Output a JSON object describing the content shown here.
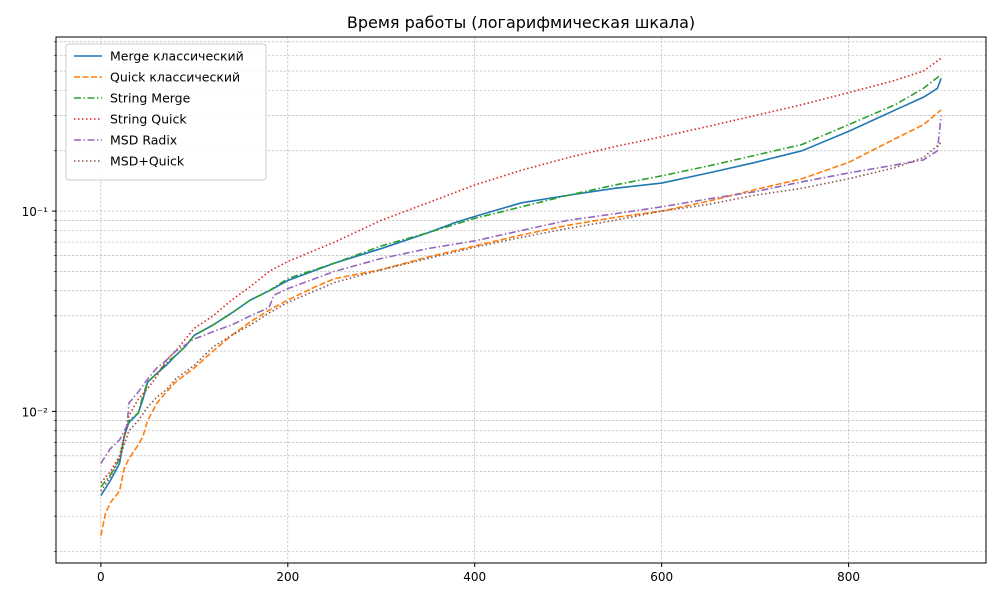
{
  "chart_data": {
    "type": "line",
    "title": "Время работы (логарифмическая шкала)",
    "xlabel": "",
    "ylabel": "",
    "xlim": [
      -48,
      947
    ],
    "ylim": [
      0.00175,
      0.74
    ],
    "yscale": "log",
    "grid": "both-major-minor-dashed",
    "legend_position": "top-left",
    "x_ticks": [
      0,
      200,
      400,
      600,
      800
    ],
    "x_tick_labels": [
      "0",
      "200",
      "400",
      "600",
      "800"
    ],
    "y_ticks": [
      0.01,
      0.1
    ],
    "y_tick_labels": [
      "10⁻²",
      "10⁻¹"
    ],
    "series": [
      {
        "name": "Merge классический",
        "color": "#1f77b4",
        "dash": "solid",
        "x": [
          0,
          10,
          20,
          25,
          30,
          40,
          45,
          50,
          60,
          70,
          80,
          90,
          100,
          120,
          140,
          160,
          180,
          200,
          250,
          300,
          350,
          380,
          400,
          450,
          500,
          550,
          600,
          650,
          700,
          750,
          800,
          850,
          880,
          895,
          899
        ],
        "y": [
          0.0038,
          0.0045,
          0.0055,
          0.0075,
          0.0088,
          0.0098,
          0.0115,
          0.014,
          0.0155,
          0.017,
          0.019,
          0.021,
          0.024,
          0.027,
          0.031,
          0.036,
          0.04,
          0.045,
          0.055,
          0.065,
          0.078,
          0.088,
          0.094,
          0.11,
          0.12,
          0.13,
          0.138,
          0.155,
          0.175,
          0.2,
          0.25,
          0.32,
          0.37,
          0.41,
          0.46
        ]
      },
      {
        "name": "Quick классический",
        "color": "#ff7f0e",
        "dash": "dashed",
        "x": [
          0,
          5,
          10,
          20,
          25,
          30,
          40,
          45,
          50,
          60,
          70,
          80,
          100,
          120,
          140,
          160,
          180,
          200,
          230,
          250,
          300,
          350,
          400,
          450,
          500,
          550,
          600,
          650,
          700,
          750,
          800,
          850,
          880,
          899
        ],
        "y": [
          0.0024,
          0.0031,
          0.0035,
          0.004,
          0.0052,
          0.0058,
          0.0068,
          0.0075,
          0.009,
          0.011,
          0.0125,
          0.014,
          0.0165,
          0.02,
          0.024,
          0.028,
          0.032,
          0.036,
          0.042,
          0.046,
          0.051,
          0.059,
          0.067,
          0.076,
          0.085,
          0.093,
          0.1,
          0.112,
          0.128,
          0.145,
          0.175,
          0.23,
          0.27,
          0.32
        ]
      },
      {
        "name": "String Merge",
        "color": "#2ca02c",
        "dash": "dashdot",
        "x": [
          0,
          10,
          20,
          25,
          30,
          40,
          45,
          50,
          60,
          70,
          80,
          90,
          100,
          120,
          140,
          160,
          180,
          200,
          250,
          300,
          350,
          400,
          450,
          500,
          550,
          600,
          650,
          700,
          750,
          800,
          850,
          880,
          899
        ],
        "y": [
          0.0042,
          0.0048,
          0.0058,
          0.0075,
          0.009,
          0.0098,
          0.012,
          0.014,
          0.0155,
          0.0175,
          0.019,
          0.021,
          0.024,
          0.027,
          0.031,
          0.036,
          0.04,
          0.046,
          0.055,
          0.067,
          0.078,
          0.092,
          0.105,
          0.12,
          0.135,
          0.15,
          0.168,
          0.19,
          0.215,
          0.27,
          0.34,
          0.41,
          0.48
        ]
      },
      {
        "name": "String Quick",
        "color": "#d62728",
        "dash": "dotted",
        "x": [
          0,
          10,
          20,
          25,
          30,
          40,
          50,
          60,
          70,
          80,
          100,
          120,
          140,
          160,
          180,
          200,
          250,
          300,
          350,
          400,
          450,
          500,
          550,
          600,
          650,
          700,
          750,
          800,
          850,
          880,
          899
        ],
        "y": [
          0.0044,
          0.005,
          0.006,
          0.0075,
          0.0095,
          0.0115,
          0.013,
          0.015,
          0.018,
          0.02,
          0.026,
          0.03,
          0.036,
          0.042,
          0.05,
          0.056,
          0.07,
          0.09,
          0.11,
          0.135,
          0.16,
          0.185,
          0.21,
          0.235,
          0.265,
          0.3,
          0.34,
          0.39,
          0.45,
          0.5,
          0.58
        ]
      },
      {
        "name": "MSD Radix",
        "color": "#9467bd",
        "dash": "dashdot",
        "x": [
          0,
          10,
          20,
          28,
          30,
          40,
          50,
          60,
          70,
          80,
          100,
          120,
          140,
          160,
          180,
          185,
          200,
          250,
          300,
          350,
          400,
          450,
          500,
          550,
          600,
          650,
          700,
          750,
          800,
          850,
          880,
          895,
          899
        ],
        "y": [
          0.0055,
          0.0065,
          0.0072,
          0.0085,
          0.011,
          0.0125,
          0.0145,
          0.0165,
          0.018,
          0.02,
          0.023,
          0.025,
          0.027,
          0.03,
          0.033,
          0.038,
          0.041,
          0.05,
          0.058,
          0.065,
          0.071,
          0.08,
          0.09,
          0.097,
          0.105,
          0.115,
          0.125,
          0.14,
          0.155,
          0.17,
          0.18,
          0.2,
          0.3
        ]
      },
      {
        "name": "MSD+Quick",
        "color": "#8c564b",
        "dash": "dotted",
        "x": [
          0,
          10,
          20,
          30,
          40,
          50,
          60,
          70,
          80,
          100,
          120,
          140,
          160,
          180,
          200,
          250,
          300,
          350,
          400,
          450,
          500,
          550,
          600,
          650,
          700,
          750,
          800,
          850,
          880,
          899
        ],
        "y": [
          0.004,
          0.0047,
          0.0058,
          0.008,
          0.009,
          0.0105,
          0.0118,
          0.0128,
          0.0145,
          0.017,
          0.021,
          0.024,
          0.027,
          0.031,
          0.035,
          0.044,
          0.051,
          0.058,
          0.066,
          0.074,
          0.082,
          0.09,
          0.1,
          0.108,
          0.12,
          0.13,
          0.145,
          0.165,
          0.185,
          0.22
        ]
      }
    ]
  }
}
